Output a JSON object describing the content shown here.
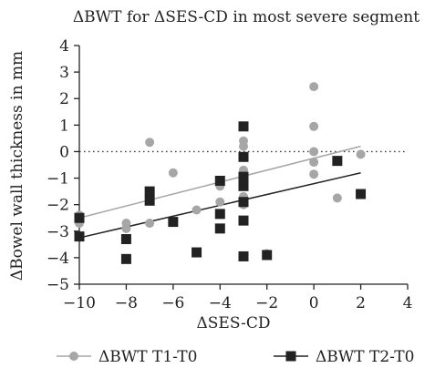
{
  "chart_data": {
    "type": "scatter",
    "title": "ΔBWT for ΔSES-CD in most severe segment",
    "xlabel": "ΔSES-CD",
    "ylabel": "ΔBowel wall thickness in mm",
    "xlim": [
      -10,
      4
    ],
    "ylim": [
      -5,
      4
    ],
    "xticks": [
      -10,
      -8,
      -6,
      -4,
      -2,
      0,
      2,
      4
    ],
    "yticks": [
      -5,
      -4,
      -3,
      -2,
      -1,
      0,
      1,
      2,
      3,
      4
    ],
    "xtick_labels": [
      "−10",
      "−8",
      "−6",
      "−4",
      "−2",
      "0",
      "2",
      "4"
    ],
    "ytick_labels": [
      "−5",
      "−4",
      "−3",
      "−2",
      "−1",
      "0",
      "1",
      "2",
      "3",
      "4"
    ],
    "reference_line": {
      "y": 0,
      "style": "dotted"
    },
    "legend_position": "bottom",
    "series": [
      {
        "name": "ΔBWT T1-T0",
        "marker": "circle",
        "color": "#a6a6a6",
        "points": [
          [
            -10,
            -2.4
          ],
          [
            -10,
            -2.7
          ],
          [
            -8,
            -2.7
          ],
          [
            -8,
            -2.9
          ],
          [
            -7,
            0.35
          ],
          [
            -7,
            -2.7
          ],
          [
            -6,
            -0.8
          ],
          [
            -5,
            -2.2
          ],
          [
            -4,
            -1.1
          ],
          [
            -4,
            -1.3
          ],
          [
            -4,
            -1.9
          ],
          [
            -3,
            0.4
          ],
          [
            -3,
            0.2
          ],
          [
            -3,
            -0.2
          ],
          [
            -3,
            -0.7
          ],
          [
            -3,
            -1.2
          ],
          [
            -3,
            -1.7
          ],
          [
            -3,
            -2.0
          ],
          [
            -2,
            -3.85
          ],
          [
            0,
            2.45
          ],
          [
            0,
            0.95
          ],
          [
            0,
            0.0
          ],
          [
            0,
            -0.4
          ],
          [
            0,
            -0.85
          ],
          [
            1,
            -1.75
          ],
          [
            2,
            -0.1
          ]
        ],
        "trendline": {
          "x": [
            -10,
            2
          ],
          "y": [
            -2.5,
            0.2
          ]
        }
      },
      {
        "name": "ΔBWT T2-T0",
        "marker": "square",
        "color": "#222222",
        "points": [
          [
            -10,
            -2.5
          ],
          [
            -10,
            -3.2
          ],
          [
            -8,
            -3.3
          ],
          [
            -8,
            -4.05
          ],
          [
            -7,
            -1.5
          ],
          [
            -7,
            -1.85
          ],
          [
            -6,
            -2.65
          ],
          [
            -5,
            -3.8
          ],
          [
            -4,
            -1.1
          ],
          [
            -4,
            -2.35
          ],
          [
            -4,
            -2.9
          ],
          [
            -3,
            0.95
          ],
          [
            -3,
            -0.2
          ],
          [
            -3,
            -0.95
          ],
          [
            -3,
            -1.3
          ],
          [
            -3,
            -1.9
          ],
          [
            -3,
            -2.6
          ],
          [
            -3,
            -3.95
          ],
          [
            -2,
            -3.9
          ],
          [
            1,
            -0.35
          ],
          [
            2,
            -1.6
          ]
        ],
        "trendline": {
          "x": [
            -10,
            2
          ],
          "y": [
            -3.25,
            -0.8
          ]
        }
      }
    ]
  }
}
